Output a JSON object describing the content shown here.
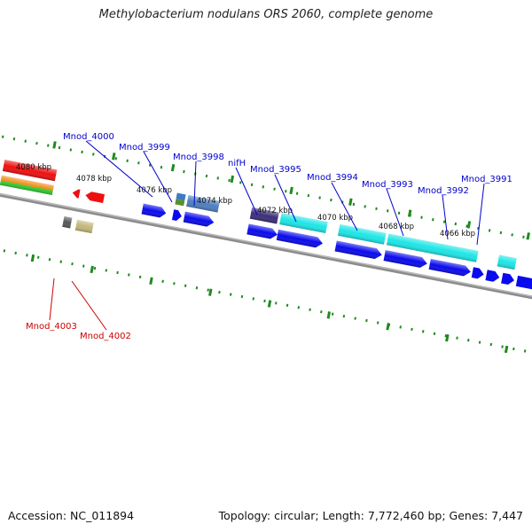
{
  "title": "Methylobacterium nodulans ORS 2060, complete genome",
  "footer": {
    "accession": "Accession: NC_011894",
    "stats": "Topology: circular; Length: 7,772,460 bp; Genes: 7,447"
  },
  "colors": {
    "backbone": "#8c8c8c",
    "tick": "#1f8a1f",
    "label_plus": "#0000cc",
    "label_minus": "#cc0000",
    "gene_blue": "#0a0aee",
    "gene_cyan": "#1de6e6",
    "gene_red": "#ee1010"
  },
  "kbp_labels": [
    "4080 kbp",
    "4078 kbp",
    "4076 kbp",
    "4074 kbp",
    "4072 kbp",
    "4070 kbp",
    "4068 kbp",
    "4066 kbp"
  ],
  "gene_labels": {
    "Mnod_4000": "Mnod_4000",
    "Mnod_3999": "Mnod_3999",
    "Mnod_3998": "Mnod_3998",
    "nifH": "nifH",
    "Mnod_3995": "Mnod_3995",
    "Mnod_3994": "Mnod_3994",
    "Mnod_3993": "Mnod_3993",
    "Mnod_3992": "Mnod_3992",
    "Mnod_3991": "Mnod_3991",
    "Mnod_4003": "Mnod_4003",
    "Mnod_4002": "Mnod_4002"
  }
}
